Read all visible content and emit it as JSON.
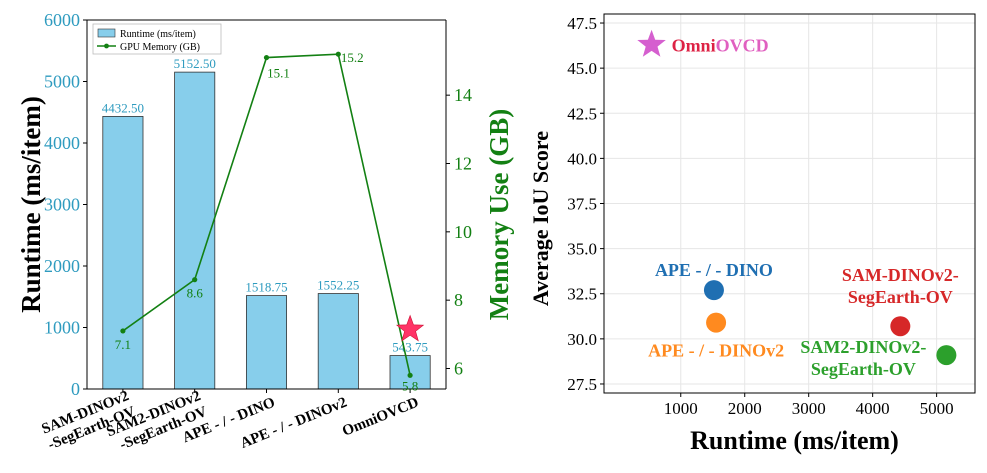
{
  "chart_data": [
    {
      "type": "bar",
      "categories": [
        "SAM-DINOv2\n-SegEarth-OV",
        "SAM2-DINOv2\n-SegEarth-OV",
        "APE - / - DINO",
        "APE - / - DINOv2",
        "OmniOVCD"
      ],
      "series": [
        {
          "name": "Runtime (ms/item)",
          "values": [
            4432.5,
            5152.5,
            1518.75,
            1552.25,
            543.75
          ],
          "labels": [
            "4432.50",
            "5152.50",
            "1518.75",
            "1552.25",
            "543.75"
          ],
          "axis": "left"
        },
        {
          "name": "GPU Memory (GB)",
          "type": "line",
          "values": [
            7.1,
            8.6,
            15.1,
            15.2,
            5.8
          ],
          "labels": [
            "7.1",
            "8.6",
            "15.1",
            "15.2",
            "5.8"
          ],
          "axis": "right"
        }
      ],
      "highlight": {
        "category": "OmniOVCD",
        "marker": "star",
        "y_left": 1000
      },
      "xlabel": "",
      "ylabel": "Runtime (ms/item)",
      "ylabel_right": "Memory Use (GB)",
      "ylim": [
        0,
        6000
      ],
      "yticks": [
        "0",
        "1000",
        "2000",
        "3000",
        "4000",
        "5000",
        "6000"
      ],
      "ylim_right": [
        5.4,
        16.2
      ],
      "yticks_right": [
        "6",
        "8",
        "10",
        "12",
        "14"
      ],
      "legend_position": "top-left",
      "colors": {
        "bar": "#87ceeb",
        "line": "#138013",
        "left_axis": "#2e9bbf",
        "right_axis": "#138013",
        "star": "#ff3366"
      }
    },
    {
      "type": "scatter",
      "xlabel": "Runtime (ms/item)",
      "ylabel": "Average IoU Score",
      "xlim": [
        -200,
        5600
      ],
      "ylim": [
        27,
        48
      ],
      "xticks": [
        "1000",
        "2000",
        "3000",
        "4000",
        "5000"
      ],
      "yticks": [
        "27.5",
        "30.0",
        "32.5",
        "35.0",
        "37.5",
        "40.0",
        "42.5",
        "45.0",
        "47.5"
      ],
      "grid": true,
      "points": [
        {
          "name": "OmniOVCD",
          "x": 543.75,
          "y": 46.3,
          "label": "OmniOVCD",
          "label_parts": [
            "Omni",
            "OVCD"
          ],
          "colors": [
            "#dd2244",
            "#e060c0"
          ],
          "marker": "star",
          "color": "#d55fcf",
          "anchor": "right"
        },
        {
          "name": "APE - / - DINO",
          "x": 1518.75,
          "y": 32.7,
          "label": "APE - / - DINO",
          "color": "#1f6fb2",
          "marker": "circle",
          "anchor": "above"
        },
        {
          "name": "APE - / - DINOv2",
          "x": 1552.25,
          "y": 30.9,
          "label": "APE - / - DINOv2",
          "color": "#ff8a1f",
          "marker": "circle",
          "anchor": "below"
        },
        {
          "name": "SAM-DINOv2-SegEarth-OV",
          "x": 4432.5,
          "y": 30.7,
          "label": "SAM-DINOv2-\nSegEarth-OV",
          "color": "#d62728",
          "marker": "circle",
          "anchor": "above"
        },
        {
          "name": "SAM2-DINOv2-SegEarth-OV",
          "x": 5152.5,
          "y": 29.1,
          "label": "SAM2-DINOv2-\nSegEarth-OV",
          "color": "#2ca02c",
          "marker": "circle",
          "anchor": "left"
        }
      ]
    }
  ]
}
